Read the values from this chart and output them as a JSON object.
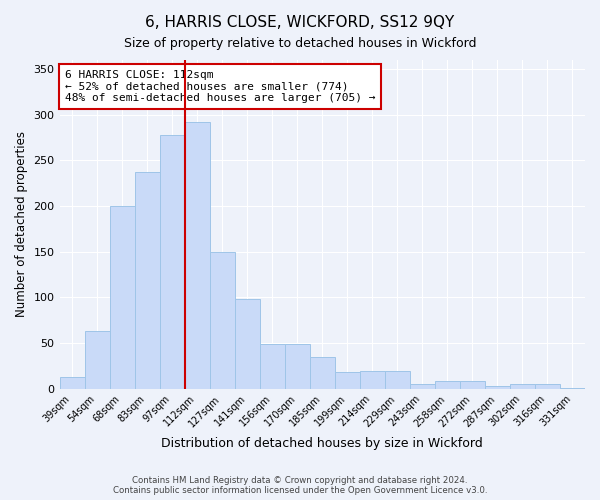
{
  "title": "6, HARRIS CLOSE, WICKFORD, SS12 9QY",
  "subtitle": "Size of property relative to detached houses in Wickford",
  "xlabel": "Distribution of detached houses by size in Wickford",
  "ylabel": "Number of detached properties",
  "bar_labels": [
    "39sqm",
    "54sqm",
    "68sqm",
    "83sqm",
    "97sqm",
    "112sqm",
    "127sqm",
    "141sqm",
    "156sqm",
    "170sqm",
    "185sqm",
    "199sqm",
    "214sqm",
    "229sqm",
    "243sqm",
    "258sqm",
    "272sqm",
    "287sqm",
    "302sqm",
    "316sqm",
    "331sqm"
  ],
  "bar_values": [
    13,
    63,
    200,
    237,
    278,
    292,
    150,
    98,
    49,
    49,
    35,
    18,
    20,
    19,
    5,
    8,
    8,
    3,
    5,
    5,
    1
  ],
  "bar_color": "#c9daf8",
  "bar_edge_color": "#9fc5e8",
  "vline_x_idx": 5,
  "vline_color": "#cc0000",
  "annotation_text": "6 HARRIS CLOSE: 112sqm\n← 52% of detached houses are smaller (774)\n48% of semi-detached houses are larger (705) →",
  "annotation_box_color": "#ffffff",
  "annotation_box_edge": "#cc0000",
  "ylim": [
    0,
    360
  ],
  "yticks": [
    0,
    50,
    100,
    150,
    200,
    250,
    300,
    350
  ],
  "footer_line1": "Contains HM Land Registry data © Crown copyright and database right 2024.",
  "footer_line2": "Contains public sector information licensed under the Open Government Licence v3.0.",
  "background_color": "#eef2fa",
  "title_fontsize": 11,
  "subtitle_fontsize": 9
}
